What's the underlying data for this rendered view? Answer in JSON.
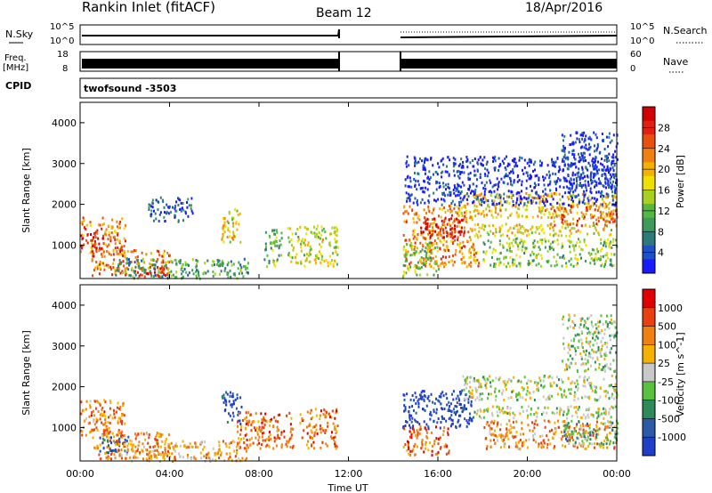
{
  "header": {
    "title": "Rankin Inlet (fitACF)",
    "beam": "Beam 12",
    "date": "18/Apr/2016"
  },
  "strip_nsky": {
    "left_label": "N.Sky",
    "left_ticks": [
      "10^5",
      "10^0"
    ],
    "right_ticks": [
      "10^5",
      "10^0"
    ],
    "right_label": "N.Search"
  },
  "strip_freq": {
    "left_label_1": "Freq.",
    "left_label_2": "[MHz]",
    "left_ticks": [
      "18",
      "8"
    ],
    "right_ticks": [
      "60",
      "0"
    ],
    "right_label": "Nave"
  },
  "cpid": {
    "label": "CPID",
    "value": "twofsound -3503"
  },
  "x_axis": {
    "label": "Time UT",
    "ticks": [
      "00:00",
      "04:00",
      "08:00",
      "12:00",
      "16:00",
      "20:00",
      "00:00"
    ]
  },
  "chart_data": [
    {
      "type": "heatmap",
      "panel": "power",
      "ylabel": "Slant Range [km]",
      "yticks": [
        1000,
        2000,
        3000,
        4000
      ],
      "ylim": [
        180,
        4500
      ],
      "x_hours_range": [
        0,
        24
      ],
      "data_gap_hours": [
        11.6,
        14.4
      ],
      "colorbar": {
        "label": "Power [dB]",
        "ticks": [
          4,
          8,
          12,
          16,
          20,
          24,
          28
        ],
        "colors": [
          "#1a1aff",
          "#1e50c8",
          "#2c7a7a",
          "#3c9a5a",
          "#55b840",
          "#a8d020",
          "#f0e000",
          "#f5b000",
          "#f08010",
          "#e85010",
          "#e02010",
          "#d00000"
        ]
      },
      "regions": [
        {
          "t0": 0.0,
          "t1": 2.0,
          "r0": 800,
          "r1": 1700,
          "level": 0.72
        },
        {
          "t0": 0.0,
          "t1": 1.0,
          "r0": 950,
          "r1": 1300,
          "level": 0.92
        },
        {
          "t0": 0.5,
          "t1": 4.0,
          "r0": 260,
          "r1": 900,
          "level": 0.75
        },
        {
          "t0": 2.5,
          "t1": 3.8,
          "r0": 250,
          "r1": 500,
          "level": 0.95
        },
        {
          "t0": 1.5,
          "t1": 7.5,
          "r0": 200,
          "r1": 700,
          "level": 0.3
        },
        {
          "t0": 6.3,
          "t1": 7.2,
          "r0": 1100,
          "r1": 1900,
          "level": 0.55
        },
        {
          "t0": 8.2,
          "t1": 9.0,
          "r0": 500,
          "r1": 1400,
          "level": 0.35
        },
        {
          "t0": 9.2,
          "t1": 11.5,
          "r0": 500,
          "r1": 1500,
          "level": 0.5
        },
        {
          "t0": 3.0,
          "t1": 5.0,
          "r0": 1600,
          "r1": 2200,
          "level": 0.12
        },
        {
          "t0": 14.4,
          "t1": 17.8,
          "r0": 500,
          "r1": 2000,
          "level": 0.72
        },
        {
          "t0": 15.2,
          "t1": 17.2,
          "r0": 1200,
          "r1": 1700,
          "level": 0.95
        },
        {
          "t0": 14.4,
          "t1": 16.0,
          "r0": 250,
          "r1": 1100,
          "level": 0.4
        },
        {
          "t0": 17.5,
          "t1": 24.0,
          "r0": 1250,
          "r1": 1550,
          "level": 0.55
        },
        {
          "t0": 17.0,
          "t1": 24.0,
          "r0": 1700,
          "r1": 2300,
          "level": 0.6
        },
        {
          "t0": 21.0,
          "t1": 24.0,
          "r0": 1500,
          "r1": 2000,
          "level": 0.78
        },
        {
          "t0": 18.0,
          "t1": 24.0,
          "r0": 500,
          "r1": 1200,
          "level": 0.4
        },
        {
          "t0": 21.5,
          "t1": 24.0,
          "r0": 2400,
          "r1": 3800,
          "level": 0.08
        },
        {
          "t0": 14.5,
          "t1": 24.0,
          "r0": 2000,
          "r1": 3200,
          "level": 0.06
        }
      ]
    },
    {
      "type": "heatmap",
      "panel": "velocity",
      "ylabel": "Slant Range [km]",
      "yticks": [
        1000,
        2000,
        3000,
        4000
      ],
      "ylim": [
        180,
        4500
      ],
      "x_hours_range": [
        0,
        24
      ],
      "data_gap_hours": [
        11.6,
        14.4
      ],
      "colorbar": {
        "label": "Velocity [m s^-1]",
        "ticks": [
          "1000",
          "500",
          "100",
          "25",
          "-25",
          "-100",
          "-500",
          "-1000"
        ],
        "colors": [
          "#1f3fc8",
          "#2a5aa8",
          "#2e8a5a",
          "#5ac040",
          "#c8c8c8",
          "#f5b000",
          "#f08010",
          "#e84010",
          "#e00000"
        ]
      },
      "regions": [
        {
          "t0": 0.0,
          "t1": 2.0,
          "r0": 800,
          "r1": 1700,
          "level": 0.72
        },
        {
          "t0": 0.5,
          "t1": 4.0,
          "r0": 260,
          "r1": 900,
          "level": 0.7
        },
        {
          "t0": 0.8,
          "t1": 2.2,
          "r0": 400,
          "r1": 800,
          "level": 0.15
        },
        {
          "t0": 1.5,
          "t1": 7.5,
          "r0": 200,
          "r1": 700,
          "level": 0.65
        },
        {
          "t0": 6.3,
          "t1": 7.2,
          "r0": 1100,
          "r1": 1900,
          "level": 0.08
        },
        {
          "t0": 7.0,
          "t1": 9.5,
          "r0": 500,
          "r1": 1400,
          "level": 0.78
        },
        {
          "t0": 9.8,
          "t1": 11.5,
          "r0": 500,
          "r1": 1500,
          "level": 0.75
        },
        {
          "t0": 14.4,
          "t1": 17.5,
          "r0": 1000,
          "r1": 1950,
          "level": 0.04
        },
        {
          "t0": 14.4,
          "t1": 16.5,
          "r0": 350,
          "r1": 1050,
          "level": 0.78
        },
        {
          "t0": 17.5,
          "t1": 24.0,
          "r0": 1250,
          "r1": 1550,
          "level": 0.48
        },
        {
          "t0": 17.0,
          "t1": 24.0,
          "r0": 1700,
          "r1": 2300,
          "level": 0.48
        },
        {
          "t0": 18.0,
          "t1": 24.0,
          "r0": 500,
          "r1": 1200,
          "level": 0.7
        },
        {
          "t0": 21.5,
          "t1": 24.0,
          "r0": 600,
          "r1": 1200,
          "level": 0.35
        },
        {
          "t0": 21.5,
          "t1": 24.0,
          "r0": 2400,
          "r1": 3800,
          "level": 0.45
        }
      ]
    }
  ]
}
